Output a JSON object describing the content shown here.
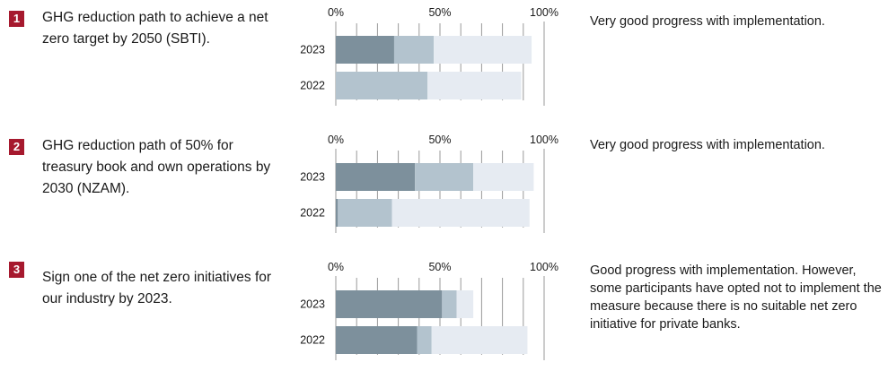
{
  "colors": {
    "bar_dark": "#7d909c",
    "bar_mid": "#b3c3ce",
    "bar_light": "#e6ebf2",
    "badge": "#a6192e",
    "axis": "#999999"
  },
  "measures": [
    {
      "number": "1",
      "goal": "GHG reduction path to achieve a net zero target by 2050 (SBTI).",
      "status": "Very good progress with implementation."
    },
    {
      "number": "2",
      "goal": "GHG reduction path of 50% for treasury book and own operations by 2030 (NZAM).",
      "status": "Very good progress with implementation."
    },
    {
      "number": "3",
      "goal": "Sign one of the net zero initiatives for our industry by 2023.",
      "status": "Good progress with implementation. However, some participants have opted not to implement the measure because there is no suitable net zero initiative for private banks."
    }
  ],
  "chart_data": [
    {
      "type": "bar",
      "orientation": "horizontal",
      "stacked": true,
      "categories": [
        "2023",
        "2022"
      ],
      "tick_labels": [
        "0%",
        "50%",
        "100%"
      ],
      "xlim": [
        0,
        100
      ],
      "series": [
        {
          "values": [
            28,
            0
          ]
        },
        {
          "values": [
            19,
            44
          ]
        },
        {
          "values": [
            47,
            45
          ]
        }
      ]
    },
    {
      "type": "bar",
      "orientation": "horizontal",
      "stacked": true,
      "categories": [
        "2023",
        "2022"
      ],
      "tick_labels": [
        "0%",
        "50%",
        "100%"
      ],
      "xlim": [
        0,
        100
      ],
      "series": [
        {
          "values": [
            38,
            1
          ]
        },
        {
          "values": [
            28,
            26
          ]
        },
        {
          "values": [
            29,
            66
          ]
        }
      ]
    },
    {
      "type": "bar",
      "orientation": "horizontal",
      "stacked": true,
      "categories": [
        "2023",
        "2022"
      ],
      "tick_labels": [
        "0%",
        "50%",
        "100%"
      ],
      "xlim": [
        0,
        100
      ],
      "series": [
        {
          "values": [
            51,
            39
          ]
        },
        {
          "values": [
            7,
            7
          ]
        },
        {
          "values": [
            8,
            46
          ]
        }
      ]
    }
  ]
}
